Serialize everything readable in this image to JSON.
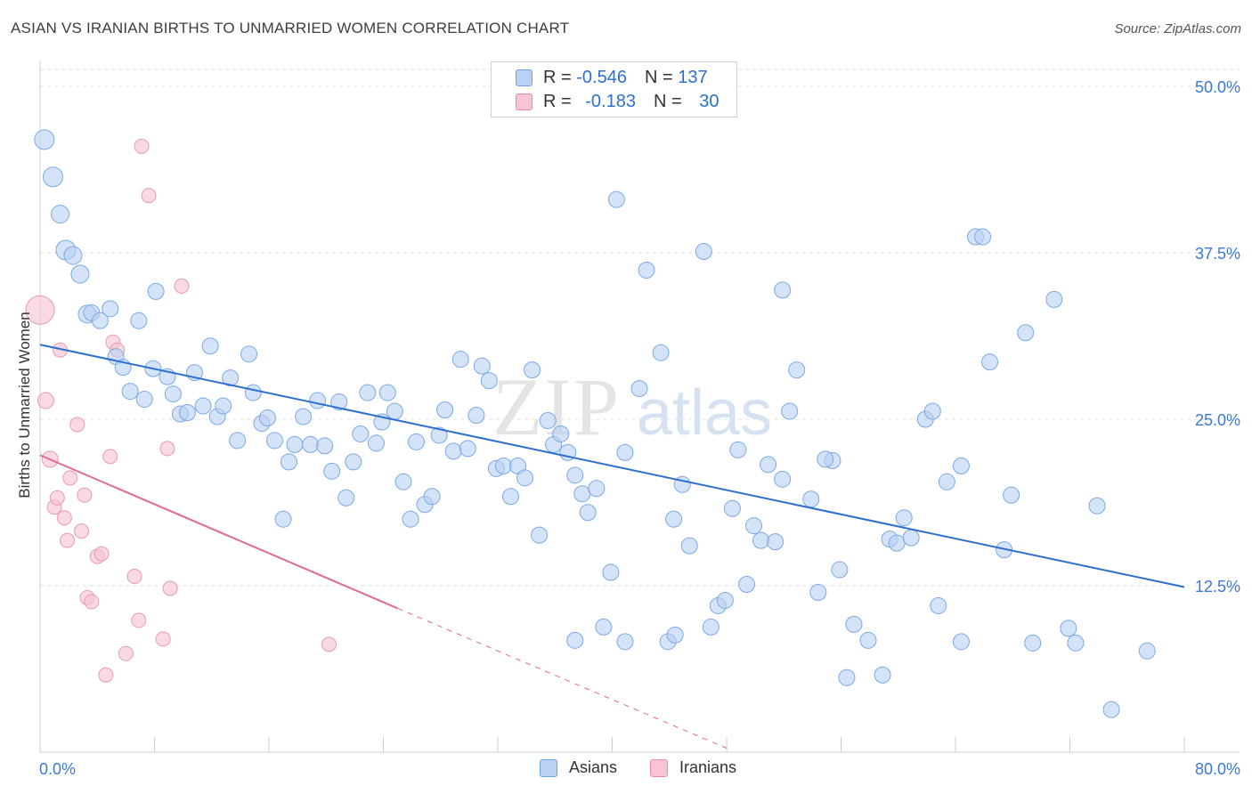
{
  "title": "ASIAN VS IRANIAN BIRTHS TO UNMARRIED WOMEN CORRELATION CHART",
  "source": "Source: ZipAtlas.com",
  "watermark": {
    "zip": "ZIP",
    "atlas": "atlas"
  },
  "legend": {
    "rows": [
      {
        "r_label": "R = ",
        "r_value": "-0.546",
        "n_label": "N = ",
        "n_value": "137",
        "color": "#6fa3e8",
        "fill": "#b9d1f4"
      },
      {
        "r_label": "R = ",
        "r_value": "-0.183",
        "n_label": "N = ",
        "n_value": "30",
        "color": "#e889a6",
        "fill": "#f6c4d3"
      }
    ]
  },
  "bottom_legend": [
    {
      "label": "Asians",
      "color": "#6fa3e8",
      "fill": "#b9d1f4"
    },
    {
      "label": "Iranians",
      "color": "#e889a6",
      "fill": "#f6c4d3"
    }
  ],
  "chart_data": {
    "type": "scatter",
    "title": "ASIAN VS IRANIAN BIRTHS TO UNMARRIED WOMEN CORRELATION CHART",
    "xlabel": "",
    "ylabel": "Births to Unmarried Women",
    "xlim": [
      0,
      80
    ],
    "ylim": [
      0,
      50
    ],
    "x_tick_labels": [
      "0.0%",
      "80.0%"
    ],
    "y_ticks": [
      12.5,
      25.0,
      37.5,
      50.0
    ],
    "y_tick_labels": [
      "12.5%",
      "25.0%",
      "37.5%",
      "50.0%"
    ],
    "grid": true,
    "legend_position": "top-center",
    "series": [
      {
        "name": "Asians",
        "color": "#2d6fd1",
        "point_fill": "#b9d1f4",
        "point_stroke": "#7aa9e6",
        "trend": {
          "x0": 0.0,
          "y0": 30.6,
          "x1": 80.0,
          "y1": 12.4
        },
        "points": [
          [
            0.3,
            46.0,
            11
          ],
          [
            0.9,
            43.2,
            11
          ],
          [
            1.4,
            40.4,
            10
          ],
          [
            1.8,
            37.7,
            11
          ],
          [
            2.3,
            37.3,
            10
          ],
          [
            2.8,
            35.9,
            10
          ],
          [
            3.3,
            32.9,
            10
          ],
          [
            3.6,
            33.0,
            9
          ],
          [
            4.2,
            32.4,
            9
          ],
          [
            4.9,
            33.3,
            9
          ],
          [
            5.3,
            29.7,
            9
          ],
          [
            5.8,
            28.9,
            9
          ],
          [
            6.3,
            27.1,
            9
          ],
          [
            6.9,
            32.4,
            9
          ],
          [
            7.3,
            26.5,
            9
          ],
          [
            7.9,
            28.8,
            9
          ],
          [
            8.1,
            34.6,
            9
          ],
          [
            8.9,
            28.2,
            9
          ],
          [
            9.3,
            26.9,
            9
          ],
          [
            9.8,
            25.4,
            9
          ],
          [
            10.3,
            25.5,
            9
          ],
          [
            10.8,
            28.5,
            9
          ],
          [
            11.4,
            26.0,
            9
          ],
          [
            11.9,
            30.5,
            9
          ],
          [
            12.4,
            25.2,
            9
          ],
          [
            12.8,
            26.0,
            9
          ],
          [
            13.3,
            28.1,
            9
          ],
          [
            13.8,
            23.4,
            9
          ],
          [
            14.6,
            29.9,
            9
          ],
          [
            14.9,
            27.0,
            9
          ],
          [
            15.5,
            24.7,
            9
          ],
          [
            15.9,
            25.1,
            9
          ],
          [
            16.4,
            23.4,
            9
          ],
          [
            17.0,
            17.5,
            9
          ],
          [
            17.4,
            21.8,
            9
          ],
          [
            17.8,
            23.1,
            9
          ],
          [
            18.4,
            25.2,
            9
          ],
          [
            18.9,
            23.1,
            9
          ],
          [
            19.4,
            26.4,
            9
          ],
          [
            19.9,
            23.0,
            9
          ],
          [
            20.4,
            21.1,
            9
          ],
          [
            20.9,
            26.3,
            9
          ],
          [
            21.4,
            19.1,
            9
          ],
          [
            21.9,
            21.8,
            9
          ],
          [
            22.4,
            23.9,
            9
          ],
          [
            22.9,
            27.0,
            9
          ],
          [
            23.5,
            23.2,
            9
          ],
          [
            23.9,
            24.8,
            9
          ],
          [
            24.3,
            27.0,
            9
          ],
          [
            24.8,
            25.6,
            9
          ],
          [
            25.4,
            20.3,
            9
          ],
          [
            25.9,
            17.5,
            9
          ],
          [
            26.3,
            23.3,
            9
          ],
          [
            26.9,
            18.6,
            9
          ],
          [
            27.4,
            19.2,
            9
          ],
          [
            27.9,
            23.8,
            9
          ],
          [
            28.3,
            25.7,
            9
          ],
          [
            28.9,
            22.6,
            9
          ],
          [
            29.4,
            29.5,
            9
          ],
          [
            29.9,
            22.8,
            9
          ],
          [
            30.5,
            25.3,
            9
          ],
          [
            30.9,
            29.0,
            9
          ],
          [
            31.4,
            27.9,
            9
          ],
          [
            31.9,
            21.3,
            9
          ],
          [
            32.4,
            21.5,
            9
          ],
          [
            32.9,
            19.2,
            9
          ],
          [
            33.4,
            21.5,
            9
          ],
          [
            33.9,
            20.6,
            9
          ],
          [
            34.4,
            28.7,
            9
          ],
          [
            34.9,
            16.3,
            9
          ],
          [
            35.5,
            24.9,
            9
          ],
          [
            35.9,
            23.1,
            9
          ],
          [
            36.4,
            23.9,
            9
          ],
          [
            37.4,
            20.8,
            9
          ],
          [
            37.9,
            19.4,
            9
          ],
          [
            38.3,
            18.0,
            9
          ],
          [
            38.9,
            19.8,
            9
          ],
          [
            39.9,
            13.5,
            9
          ],
          [
            40.3,
            41.5,
            9
          ],
          [
            40.9,
            22.5,
            9
          ],
          [
            41.9,
            27.3,
            9
          ],
          [
            42.4,
            36.2,
            9
          ],
          [
            43.4,
            30.0,
            9
          ],
          [
            44.3,
            17.5,
            9
          ],
          [
            44.9,
            20.1,
            9
          ],
          [
            45.4,
            15.5,
            9
          ],
          [
            46.4,
            37.6,
            9
          ],
          [
            47.4,
            11.0,
            9
          ],
          [
            47.9,
            11.4,
            9
          ],
          [
            48.4,
            18.3,
            9
          ],
          [
            48.8,
            22.7,
            9
          ],
          [
            49.4,
            12.6,
            9
          ],
          [
            49.9,
            17.0,
            9
          ],
          [
            50.4,
            15.9,
            9
          ],
          [
            50.9,
            21.6,
            9
          ],
          [
            51.4,
            15.8,
            9
          ],
          [
            51.9,
            34.7,
            9
          ],
          [
            52.4,
            25.6,
            9
          ],
          [
            52.9,
            28.7,
            9
          ],
          [
            53.9,
            19.0,
            9
          ],
          [
            54.4,
            12.0,
            9
          ],
          [
            55.4,
            21.9,
            9
          ],
          [
            55.9,
            13.7,
            9
          ],
          [
            56.9,
            9.6,
            9
          ],
          [
            57.9,
            8.4,
            9
          ],
          [
            58.9,
            5.8,
            9
          ],
          [
            59.4,
            16.0,
            9
          ],
          [
            59.9,
            15.7,
            9
          ],
          [
            60.4,
            17.6,
            9
          ],
          [
            60.9,
            16.1,
            9
          ],
          [
            61.9,
            25.0,
            9
          ],
          [
            62.4,
            25.6,
            9
          ],
          [
            62.8,
            11.0,
            9
          ],
          [
            63.4,
            20.3,
            9
          ],
          [
            64.4,
            21.5,
            9
          ],
          [
            65.4,
            38.7,
            9
          ],
          [
            65.9,
            38.7,
            9
          ],
          [
            66.4,
            29.3,
            9
          ],
          [
            67.4,
            15.2,
            9
          ],
          [
            67.9,
            19.3,
            9
          ],
          [
            68.9,
            31.5,
            9
          ],
          [
            70.9,
            34.0,
            9
          ],
          [
            71.9,
            9.3,
            9
          ],
          [
            72.4,
            8.2,
            9
          ],
          [
            73.9,
            18.5,
            9
          ],
          [
            74.9,
            3.2,
            9
          ],
          [
            77.4,
            7.6,
            9
          ],
          [
            40.9,
            8.3,
            9
          ],
          [
            43.9,
            8.3,
            9
          ],
          [
            39.4,
            9.4,
            9
          ],
          [
            37.4,
            8.4,
            9
          ],
          [
            56.4,
            5.6,
            9
          ],
          [
            64.4,
            8.3,
            9
          ],
          [
            69.4,
            8.2,
            9
          ],
          [
            46.9,
            9.4,
            9
          ],
          [
            51.9,
            20.5,
            9
          ],
          [
            54.9,
            22.0,
            9
          ],
          [
            44.4,
            8.8,
            9
          ],
          [
            36.9,
            22.5,
            9
          ]
        ]
      },
      {
        "name": "Iranians",
        "color": "#e06a93",
        "point_fill": "#f6c4d3",
        "point_stroke": "#e89ab3",
        "trend": {
          "x0": 0.0,
          "y0": 22.3,
          "x1": 25.0,
          "y1": 10.8,
          "dash_x1": 48.0,
          "dash_y1": 0.3
        },
        "points": [
          [
            0.0,
            33.2,
            16
          ],
          [
            0.4,
            26.4,
            9
          ],
          [
            0.7,
            22.0,
            9
          ],
          [
            1.0,
            18.4,
            8
          ],
          [
            1.2,
            19.1,
            8
          ],
          [
            1.4,
            30.2,
            8
          ],
          [
            1.7,
            17.6,
            8
          ],
          [
            1.9,
            15.9,
            8
          ],
          [
            2.1,
            20.6,
            8
          ],
          [
            2.6,
            24.6,
            8
          ],
          [
            2.9,
            16.6,
            8
          ],
          [
            3.1,
            19.3,
            8
          ],
          [
            3.3,
            11.6,
            8
          ],
          [
            3.6,
            11.3,
            8
          ],
          [
            4.0,
            14.7,
            8
          ],
          [
            4.3,
            14.9,
            8
          ],
          [
            4.6,
            5.8,
            8
          ],
          [
            4.9,
            22.2,
            8
          ],
          [
            5.1,
            30.8,
            8
          ],
          [
            5.4,
            30.2,
            8
          ],
          [
            6.0,
            7.4,
            8
          ],
          [
            6.6,
            13.2,
            8
          ],
          [
            6.9,
            9.9,
            8
          ],
          [
            7.1,
            45.5,
            8
          ],
          [
            7.6,
            41.8,
            8
          ],
          [
            8.6,
            8.5,
            8
          ],
          [
            8.9,
            22.8,
            8
          ],
          [
            9.1,
            12.3,
            8
          ],
          [
            9.9,
            35.0,
            8
          ],
          [
            20.2,
            8.1,
            8
          ]
        ]
      }
    ]
  }
}
